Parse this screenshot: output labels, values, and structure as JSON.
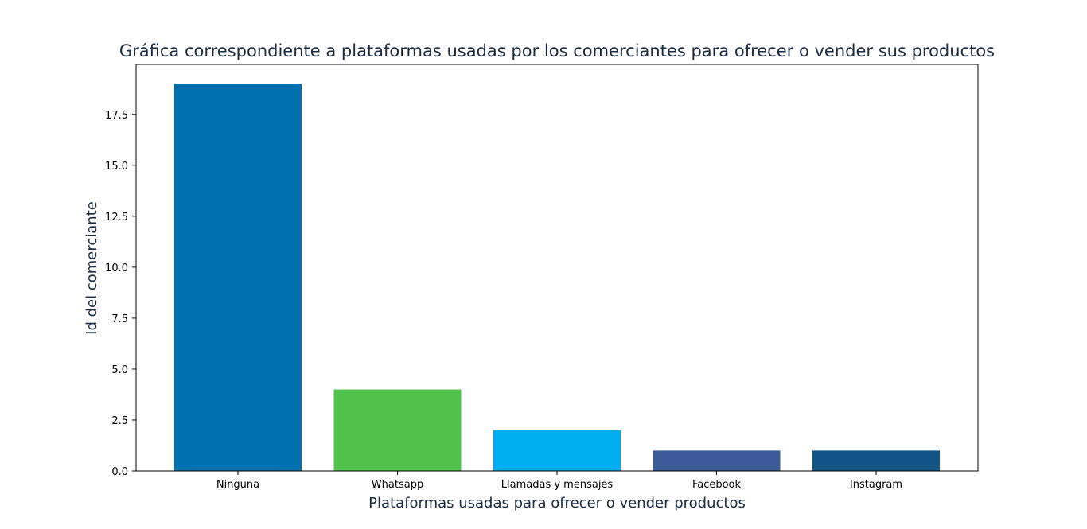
{
  "chart_data": {
    "type": "bar",
    "title": "Gráfica correspondiente a plataformas usadas por los comerciantes para ofrecer o vender sus productos",
    "xlabel": "Plataformas usadas para ofrecer o vender productos",
    "ylabel": "Id del comerciante",
    "categories": [
      "Ninguna",
      "Whatsapp",
      "Llamadas y mensajes",
      "Facebook",
      "Instagram"
    ],
    "values": [
      19,
      4,
      2,
      1,
      1
    ],
    "colors": [
      "#0070b0",
      "#4fc24a",
      "#00aeef",
      "#3d5a99",
      "#115587"
    ],
    "ylim": [
      0,
      19.95
    ],
    "yticks": [
      0.0,
      2.5,
      5.0,
      7.5,
      10.0,
      12.5,
      15.0,
      17.5
    ],
    "ytick_labels": [
      "0.0",
      "2.5",
      "5.0",
      "7.5",
      "10.0",
      "12.5",
      "15.0",
      "17.5"
    ],
    "grid": false
  }
}
